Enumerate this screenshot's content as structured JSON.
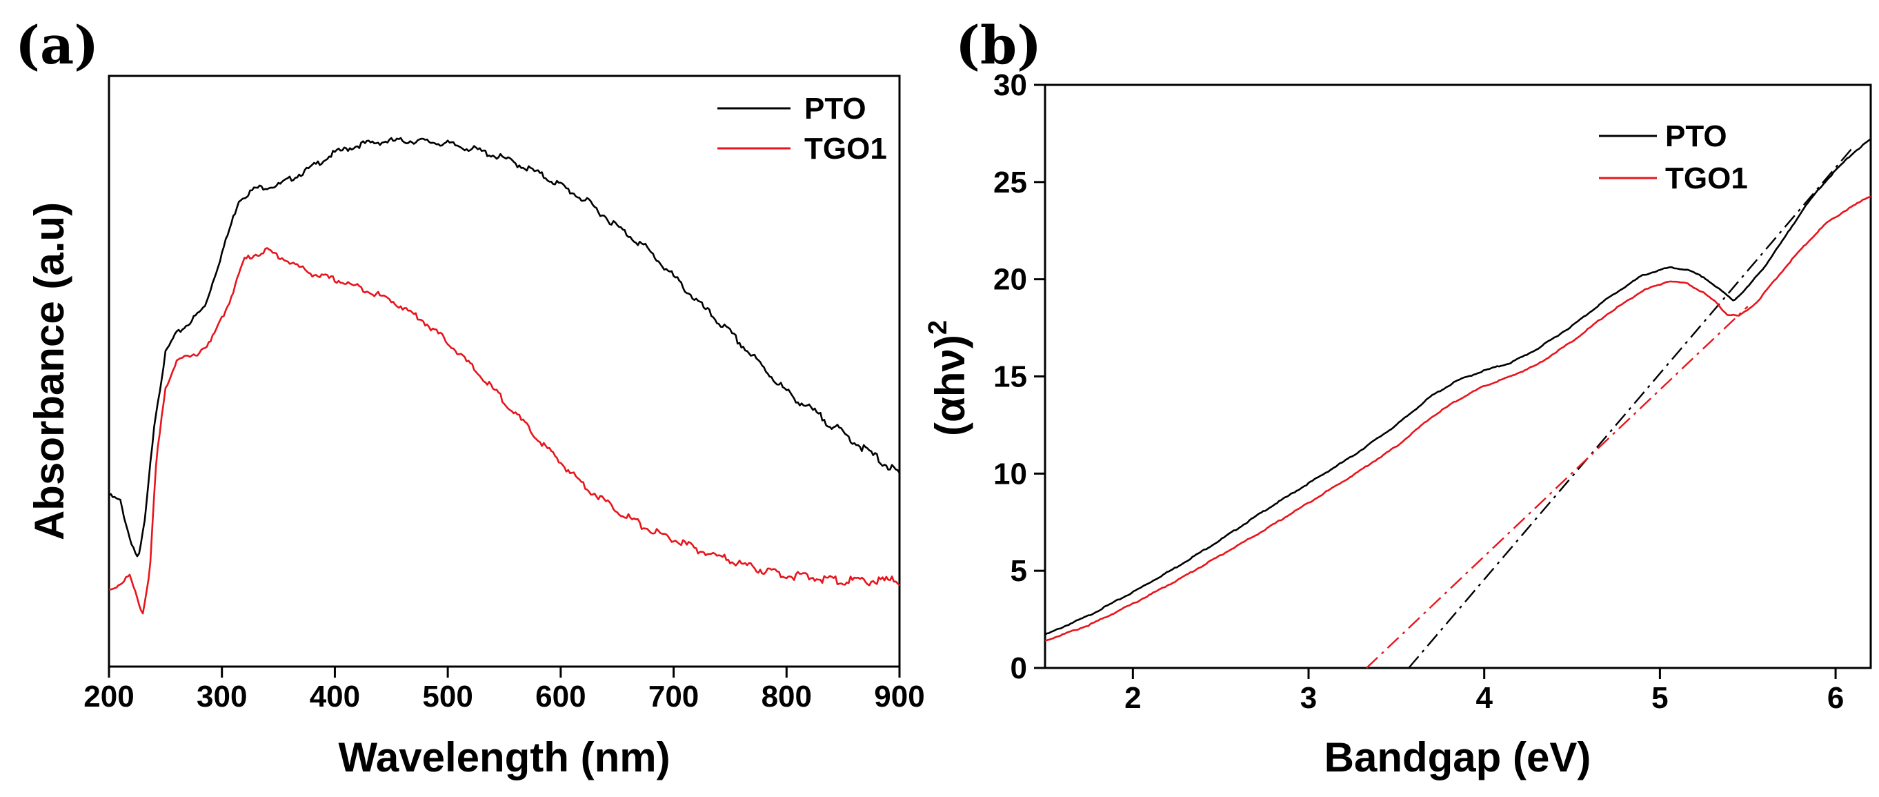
{
  "chart_data": [
    {
      "panel_label": "(a)",
      "type": "line",
      "xlabel": "Wavelength (nm)",
      "ylabel": "Absorbance (a.u)",
      "xlim": [
        200,
        900
      ],
      "ylim": [
        0,
        1
      ],
      "xticks": [
        200,
        300,
        400,
        500,
        600,
        700,
        800,
        900
      ],
      "yticks_shown": false,
      "legend_position": "top-right",
      "series": [
        {
          "name": "PTO",
          "color": "#000000",
          "x": [
            200,
            210,
            218,
            226,
            232,
            240,
            250,
            258,
            270,
            285,
            300,
            315,
            330,
            350,
            375,
            400,
            425,
            450,
            475,
            500,
            525,
            550,
            575,
            600,
            625,
            650,
            675,
            700,
            725,
            750,
            775,
            800,
            825,
            850,
            875,
            900
          ],
          "y": [
            0.29,
            0.28,
            0.22,
            0.18,
            0.25,
            0.41,
            0.53,
            0.56,
            0.58,
            0.61,
            0.7,
            0.79,
            0.81,
            0.815,
            0.84,
            0.87,
            0.885,
            0.89,
            0.89,
            0.885,
            0.875,
            0.86,
            0.84,
            0.815,
            0.785,
            0.745,
            0.71,
            0.66,
            0.61,
            0.565,
            0.515,
            0.465,
            0.43,
            0.395,
            0.36,
            0.325
          ]
        },
        {
          "name": "TGO1",
          "color": "#e8141c",
          "x": [
            200,
            210,
            218,
            224,
            230,
            236,
            242,
            250,
            260,
            275,
            290,
            305,
            320,
            340,
            360,
            380,
            400,
            425,
            450,
            475,
            500,
            525,
            550,
            575,
            600,
            625,
            650,
            675,
            700,
            725,
            750,
            775,
            800,
            825,
            850,
            875,
            900
          ],
          "y": [
            0.13,
            0.14,
            0.155,
            0.12,
            0.09,
            0.16,
            0.35,
            0.47,
            0.52,
            0.525,
            0.55,
            0.61,
            0.69,
            0.705,
            0.685,
            0.665,
            0.655,
            0.64,
            0.62,
            0.59,
            0.55,
            0.5,
            0.45,
            0.395,
            0.345,
            0.3,
            0.265,
            0.235,
            0.215,
            0.195,
            0.18,
            0.165,
            0.155,
            0.15,
            0.145,
            0.145,
            0.145
          ]
        }
      ]
    },
    {
      "panel_label": "(b)",
      "type": "line",
      "xlabel": "Bandgap (eV)",
      "ylabel_main": "(αhν)",
      "ylabel_sup": "2",
      "xlim": [
        1.5,
        6.2
      ],
      "ylim": [
        0,
        30
      ],
      "xticks": [
        2,
        3,
        4,
        5,
        6
      ],
      "yticks": [
        0,
        5,
        10,
        15,
        20,
        25,
        30
      ],
      "legend_position": "top-right",
      "series": [
        {
          "name": "PTO",
          "color": "#000000",
          "x": [
            1.5,
            1.75,
            2.0,
            2.25,
            2.5,
            2.75,
            3.0,
            3.25,
            3.5,
            3.7,
            3.85,
            4.0,
            4.15,
            4.3,
            4.5,
            4.7,
            4.9,
            5.05,
            5.15,
            5.25,
            5.35,
            5.42,
            5.5,
            5.6,
            5.7,
            5.8,
            5.9,
            6.0,
            6.1,
            6.2
          ],
          "y": [
            1.7,
            2.7,
            3.9,
            5.2,
            6.6,
            8.1,
            9.5,
            10.9,
            12.5,
            14.0,
            14.8,
            15.3,
            15.7,
            16.4,
            17.6,
            19.0,
            20.2,
            20.6,
            20.5,
            20.1,
            19.4,
            18.9,
            19.6,
            20.7,
            22.0,
            23.4,
            24.6,
            25.6,
            26.5,
            27.2
          ]
        },
        {
          "name": "TGO1",
          "color": "#e8141c",
          "x": [
            1.5,
            1.75,
            2.0,
            2.25,
            2.5,
            2.75,
            3.0,
            3.25,
            3.5,
            3.7,
            3.85,
            4.0,
            4.15,
            4.3,
            4.5,
            4.7,
            4.9,
            5.05,
            5.15,
            5.25,
            5.32,
            5.38,
            5.45,
            5.55,
            5.65,
            5.75,
            5.85,
            5.95,
            6.05,
            6.2
          ],
          "y": [
            1.4,
            2.2,
            3.3,
            4.5,
            5.8,
            7.1,
            8.5,
            9.9,
            11.4,
            12.9,
            13.8,
            14.5,
            15.0,
            15.6,
            16.8,
            18.2,
            19.4,
            19.9,
            19.8,
            19.3,
            18.8,
            18.2,
            18.1,
            18.8,
            19.9,
            21.0,
            22.0,
            22.9,
            23.5,
            24.3
          ]
        }
      ],
      "fits": [
        {
          "name": "PTO fit",
          "color": "#000000",
          "x": [
            3.57,
            6.1
          ],
          "y": [
            0,
            26.8
          ]
        },
        {
          "name": "TGO1 fit",
          "color": "#e8141c",
          "x": [
            3.33,
            5.5
          ],
          "y": [
            0,
            18.6
          ]
        }
      ]
    }
  ]
}
